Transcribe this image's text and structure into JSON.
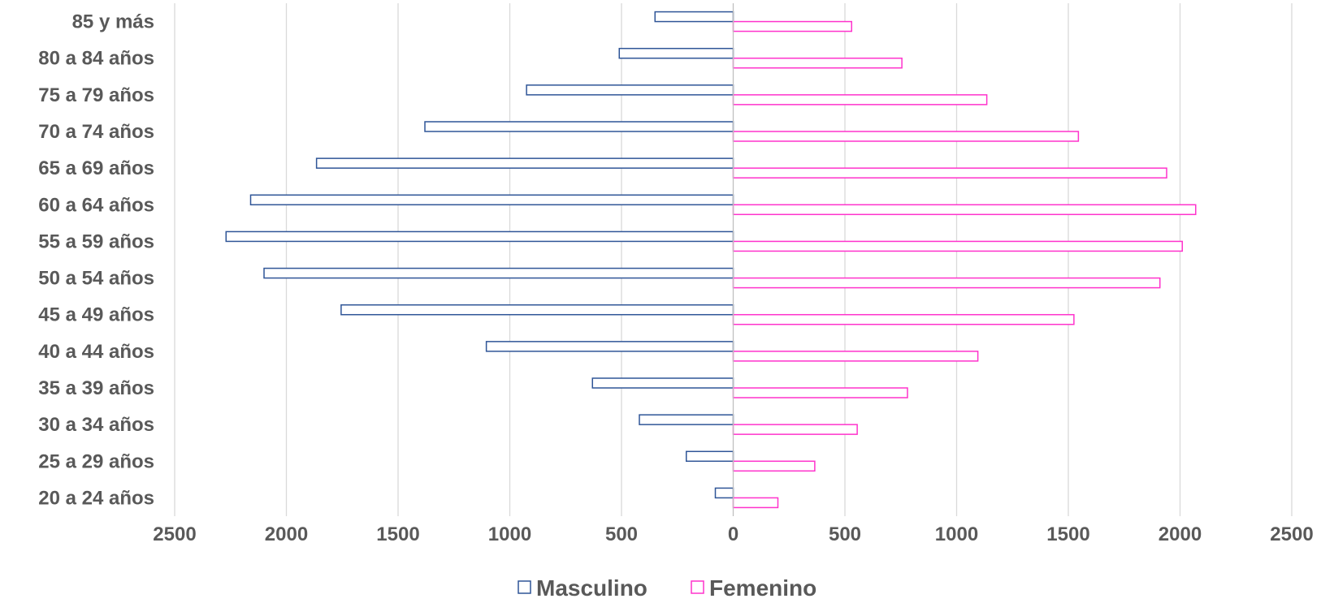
{
  "chart_data": {
    "type": "bar",
    "orientation": "horizontal",
    "subtype": "population-pyramid",
    "categories": [
      "85 y más",
      "80 a 84 años",
      "75 a 79 años",
      "70 a 74 años",
      "65 a 69 años",
      "60 a 64 años",
      "55 a 59 años",
      "50 a 54 años",
      "45 a 49 años",
      "40 a 44 años",
      "35 a 39 años",
      "30 a 34 años",
      "25 a 29 años",
      "20 a 24 años"
    ],
    "series": [
      {
        "name": "Masculino",
        "color": "#2F5597",
        "values": [
          -350,
          -510,
          -925,
          -1380,
          -1865,
          -2160,
          -2270,
          -2100,
          -1755,
          -1105,
          -630,
          -420,
          -210,
          -80
        ]
      },
      {
        "name": "Femenino",
        "color": "#FF33CC",
        "values": [
          530,
          755,
          1135,
          1545,
          1940,
          2070,
          2010,
          1910,
          1525,
          1095,
          780,
          555,
          365,
          200
        ]
      }
    ],
    "xlim": [
      -2500,
      2500
    ],
    "xticks": [
      -2500,
      -2000,
      -1500,
      -1000,
      -500,
      0,
      500,
      1000,
      1500,
      2000,
      2500
    ],
    "xtick_labels": [
      "2500",
      "2000",
      "1500",
      "1000",
      "500",
      "0",
      "500",
      "1000",
      "1500",
      "2000",
      "2500"
    ],
    "title": "",
    "xlabel": "",
    "ylabel": "",
    "grid": "vertical",
    "legend_position": "bottom"
  }
}
